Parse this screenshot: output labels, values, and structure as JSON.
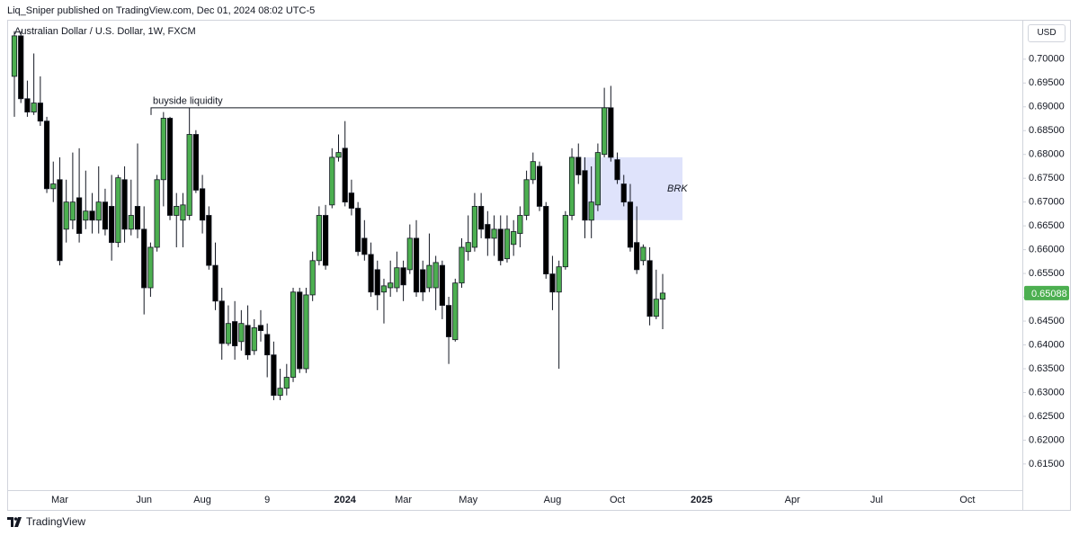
{
  "header": {
    "byline": "Liq_Sniper published on TradingView.com, Dec 01, 2024 08:02 UTC-5"
  },
  "footer": {
    "brand": "TradingView"
  },
  "chart_data": {
    "type": "candlestick",
    "title": "Australian Dollar / U.S. Dollar, 1W, FXCM",
    "currency": "USD",
    "up_color": "#4caf50",
    "down_color": "#000000",
    "grid": false,
    "categories": [
      null,
      null,
      null,
      null,
      null,
      null,
      null,
      "Mar",
      null,
      null,
      null,
      null,
      null,
      null,
      null,
      null,
      null,
      null,
      null,
      null,
      "Jun",
      null,
      null,
      null,
      null,
      null,
      null,
      null,
      null,
      "Aug",
      null,
      null,
      null,
      null,
      null,
      null,
      null,
      null,
      null,
      "9",
      null,
      null,
      null,
      null,
      null,
      null,
      null,
      null,
      null,
      null,
      null,
      "2024",
      null,
      null,
      null,
      null,
      null,
      null,
      null,
      null,
      "Mar",
      null,
      null,
      null,
      null,
      null,
      null,
      null,
      null,
      null,
      "May",
      null,
      null,
      null,
      null,
      null,
      null,
      null,
      null,
      null,
      null,
      null,
      null,
      "Aug",
      null,
      null,
      null,
      null,
      null,
      null,
      null,
      null,
      null,
      "Oct",
      null,
      null,
      null,
      null,
      null,
      null,
      null,
      null,
      null,
      null,
      null,
      null,
      "2025",
      null,
      null,
      null,
      null,
      null,
      null,
      null,
      null,
      null,
      null,
      null,
      null,
      null,
      "Apr",
      null,
      null,
      null,
      null,
      null,
      null,
      null,
      null,
      null,
      null,
      null,
      null,
      "Jul",
      null,
      null,
      null,
      null,
      null,
      null,
      null,
      null,
      null,
      null,
      null,
      null,
      null,
      "Oct",
      null,
      null,
      null,
      null,
      null,
      null,
      null,
      null
    ],
    "open": [
      0.6964,
      0.7049,
      0.6917,
      0.6889,
      0.6908,
      0.687,
      0.6728,
      0.6747,
      0.6643,
      0.6662,
      0.6709,
      0.6662,
      0.6681,
      0.6662,
      0.67,
      0.6691,
      0.6615,
      0.6747,
      0.6643,
      0.6691,
      0.6643,
      0.652,
      0.6605,
      0.6747,
      0.6876,
      0.6672,
      0.6662,
      0.6672,
      0.6842,
      0.6728,
      0.6672,
      0.6567,
      0.6492,
      0.6403,
      0.6449,
      0.6407,
      0.6441,
      0.6388,
      0.6441,
      0.6422,
      0.6379,
      0.6294,
      0.6309,
      0.6332,
      0.6511,
      0.635,
      0.6505,
      0.6577,
      0.6672,
      0.6694,
      0.6794,
      0.6813,
      0.6719,
      0.6687,
      0.6624,
      0.659,
      0.6558,
      0.6511,
      0.652,
      0.652,
      0.6562,
      0.6558,
      0.6624,
      0.6558,
      0.652,
      0.652,
      0.6567,
      0.6483,
      0.6411,
      0.653,
      0.6596,
      0.6605,
      0.6691,
      0.6653,
      0.6624,
      0.6643,
      0.6581,
      0.6611,
      0.6634,
      0.6672,
      0.6747,
      0.6775,
      0.6691,
      0.6549,
      0.6511,
      0.6564,
      0.6672,
      0.6794,
      0.6766,
      0.6662,
      0.6694,
      0.68,
      0.6898,
      0.6789,
      0.6738,
      0.67,
      0.6615,
      0.6577,
      0.6577,
      0.646,
      0.6496,
      null,
      null,
      null,
      null,
      null,
      null,
      null,
      null,
      null,
      null,
      null,
      null,
      null,
      null,
      null,
      null,
      null,
      null,
      null,
      null,
      null,
      null,
      null,
      null,
      null,
      null,
      null,
      null,
      null,
      null,
      null,
      null,
      null,
      null,
      null,
      null,
      null,
      null,
      null,
      null,
      null,
      null,
      null,
      null,
      null,
      null,
      null,
      null,
      null,
      null,
      null,
      null,
      null,
      null,
      null
    ],
    "high": [
      0.7059,
      0.7059,
      0.6955,
      0.7012,
      0.6964,
      0.6879,
      0.6785,
      0.6794,
      0.6747,
      0.6804,
      0.6813,
      0.6766,
      0.6719,
      0.6775,
      0.6728,
      0.6757,
      0.6757,
      0.6775,
      0.6747,
      0.6823,
      0.6691,
      0.6615,
      0.6757,
      0.6889,
      0.6879,
      0.6719,
      0.6719,
      0.6898,
      0.6851,
      0.6757,
      0.6691,
      0.6615,
      0.652,
      0.6483,
      0.6492,
      0.6473,
      0.6483,
      0.6454,
      0.6473,
      0.6445,
      0.6407,
      0.635,
      0.636,
      0.652,
      0.652,
      0.652,
      0.6596,
      0.6691,
      0.6694,
      0.6813,
      0.6842,
      0.687,
      0.6747,
      0.67,
      0.6662,
      0.6615,
      0.6577,
      0.6539,
      0.6577,
      0.6596,
      0.6577,
      0.6653,
      0.6662,
      0.6577,
      0.6634,
      0.6587,
      0.6577,
      0.6501,
      0.6539,
      0.6624,
      0.6672,
      0.6719,
      0.6719,
      0.6681,
      0.6672,
      0.6672,
      0.6672,
      0.6662,
      0.6691,
      0.6766,
      0.6804,
      0.6785,
      0.67,
      0.6587,
      0.6577,
      0.6681,
      0.6813,
      0.6823,
      0.6794,
      0.6775,
      0.6823,
      0.694,
      0.6944,
      0.6804,
      0.6757,
      0.6738,
      0.6691,
      0.6611,
      0.6605,
      0.6558,
      0.6549,
      null,
      null,
      null,
      null,
      null,
      null,
      null,
      null,
      null,
      null,
      null,
      null,
      null,
      null,
      null,
      null,
      null,
      null,
      null,
      null,
      null,
      null,
      null,
      null,
      null,
      null,
      null,
      null,
      null,
      null,
      null,
      null,
      null,
      null,
      null,
      null,
      null,
      null,
      null,
      null,
      null,
      null,
      null,
      null,
      null,
      null,
      null,
      null,
      null,
      null,
      null,
      null,
      null,
      null,
      null
    ],
    "low": [
      0.6879,
      0.6908,
      0.6879,
      0.6883,
      0.686,
      0.6719,
      0.67,
      0.6567,
      0.6615,
      0.6643,
      0.6615,
      0.6643,
      0.6634,
      0.6634,
      0.663,
      0.6577,
      0.6605,
      0.6615,
      0.663,
      0.6624,
      0.6464,
      0.6501,
      0.6596,
      0.6691,
      0.6662,
      0.6605,
      0.6605,
      0.6662,
      0.6719,
      0.6634,
      0.6558,
      0.6473,
      0.6369,
      0.6398,
      0.6369,
      0.6388,
      0.6369,
      0.6379,
      0.6407,
      0.6332,
      0.6284,
      0.6284,
      0.6294,
      0.6322,
      0.6341,
      0.6341,
      0.6492,
      0.6567,
      0.6558,
      0.6687,
      0.6785,
      0.6691,
      0.6672,
      0.6587,
      0.6577,
      0.6501,
      0.6473,
      0.6445,
      0.6501,
      0.6511,
      0.6492,
      0.6549,
      0.6501,
      0.6492,
      0.6511,
      0.6473,
      0.6454,
      0.636,
      0.6407,
      0.652,
      0.6577,
      0.6596,
      0.6624,
      0.6587,
      0.6587,
      0.6567,
      0.6573,
      0.6587,
      0.6605,
      0.6662,
      0.6738,
      0.6681,
      0.6539,
      0.6473,
      0.635,
      0.6558,
      0.6662,
      0.6738,
      0.6624,
      0.6624,
      0.6681,
      0.6794,
      0.6785,
      0.6738,
      0.6691,
      0.6596,
      0.6549,
      0.6567,
      0.6441,
      0.6454,
      0.6433,
      null,
      null,
      null,
      null,
      null,
      null,
      null,
      null,
      null,
      null,
      null,
      null,
      null,
      null,
      null,
      null,
      null,
      null,
      null,
      null,
      null,
      null,
      null,
      null,
      null,
      null,
      null,
      null,
      null,
      null,
      null,
      null,
      null,
      null,
      null,
      null,
      null,
      null,
      null,
      null,
      null,
      null,
      null,
      null,
      null,
      null,
      null,
      null,
      null,
      null,
      null,
      null,
      null,
      null,
      null
    ],
    "close": [
      0.7049,
      0.6917,
      0.6889,
      0.6908,
      0.687,
      0.6728,
      0.6738,
      0.6577,
      0.67,
      0.67,
      0.6634,
      0.6681,
      0.6662,
      0.67,
      0.6643,
      0.6615,
      0.6751,
      0.6643,
      0.6672,
      0.6643,
      0.652,
      0.6605,
      0.6747,
      0.6876,
      0.6672,
      0.6691,
      0.6694,
      0.6842,
      0.6725,
      0.6662,
      0.6567,
      0.6492,
      0.6403,
      0.6445,
      0.6398,
      0.6445,
      0.6379,
      0.6436,
      0.643,
      0.6379,
      0.6294,
      0.6309,
      0.6332,
      0.6511,
      0.635,
      0.6505,
      0.6577,
      0.6672,
      0.6567,
      0.6794,
      0.6804,
      0.67,
      0.6687,
      0.6596,
      0.659,
      0.6511,
      0.6505,
      0.6524,
      0.653,
      0.6562,
      0.6526,
      0.6624,
      0.6511,
      0.6511,
      0.6567,
      0.6573,
      0.6483,
      0.6417,
      0.653,
      0.6605,
      0.6615,
      0.6691,
      0.6643,
      0.6624,
      0.6643,
      0.6577,
      0.6643,
      0.6638,
      0.6672,
      0.6747,
      0.6785,
      0.6691,
      0.6549,
      0.6511,
      0.6564,
      0.6672,
      0.6794,
      0.6757,
      0.6662,
      0.67,
      0.6804,
      0.6898,
      0.6794,
      0.6747,
      0.67,
      0.6605,
      0.6558,
      0.6605,
      0.646,
      0.6496,
      0.65088,
      null,
      null,
      null,
      null,
      null,
      null,
      null,
      null,
      null,
      null,
      null,
      null,
      null,
      null,
      null,
      null,
      null,
      null,
      null,
      null,
      null,
      null,
      null,
      null,
      null,
      null,
      null,
      null,
      null,
      null,
      null,
      null,
      null,
      null,
      null,
      null,
      null,
      null,
      null,
      null,
      null,
      null,
      null,
      null,
      null,
      null,
      null,
      null,
      null,
      null,
      null,
      null,
      null,
      null,
      null
    ],
    "ylim": [
      0.6095,
      0.7079
    ],
    "yticks": [
      {
        "value": 0.7,
        "label": "0.70000"
      },
      {
        "value": 0.695,
        "label": "0.69500"
      },
      {
        "value": 0.69,
        "label": "0.69000"
      },
      {
        "value": 0.685,
        "label": "0.68500"
      },
      {
        "value": 0.68,
        "label": "0.68000"
      },
      {
        "value": 0.675,
        "label": "0.67500"
      },
      {
        "value": 0.67,
        "label": "0.67000"
      },
      {
        "value": 0.665,
        "label": "0.66500"
      },
      {
        "value": 0.66,
        "label": "0.66000"
      },
      {
        "value": 0.655,
        "label": "0.65500"
      },
      {
        "value": 0.65,
        "label": "0.65000"
      },
      {
        "value": 0.645,
        "label": "0.64500"
      },
      {
        "value": 0.64,
        "label": "0.64000"
      },
      {
        "value": 0.635,
        "label": "0.63500"
      },
      {
        "value": 0.63,
        "label": "0.63000"
      },
      {
        "value": 0.625,
        "label": "0.62500"
      },
      {
        "value": 0.62,
        "label": "0.62000"
      },
      {
        "value": 0.615,
        "label": "0.61500"
      }
    ],
    "level": {
      "label": "buyside liquidity",
      "value": 0.6898
    },
    "zone": {
      "label": "BRK",
      "top": 0.6794,
      "bottom": 0.6662,
      "color": "#dfe3fb"
    }
  }
}
